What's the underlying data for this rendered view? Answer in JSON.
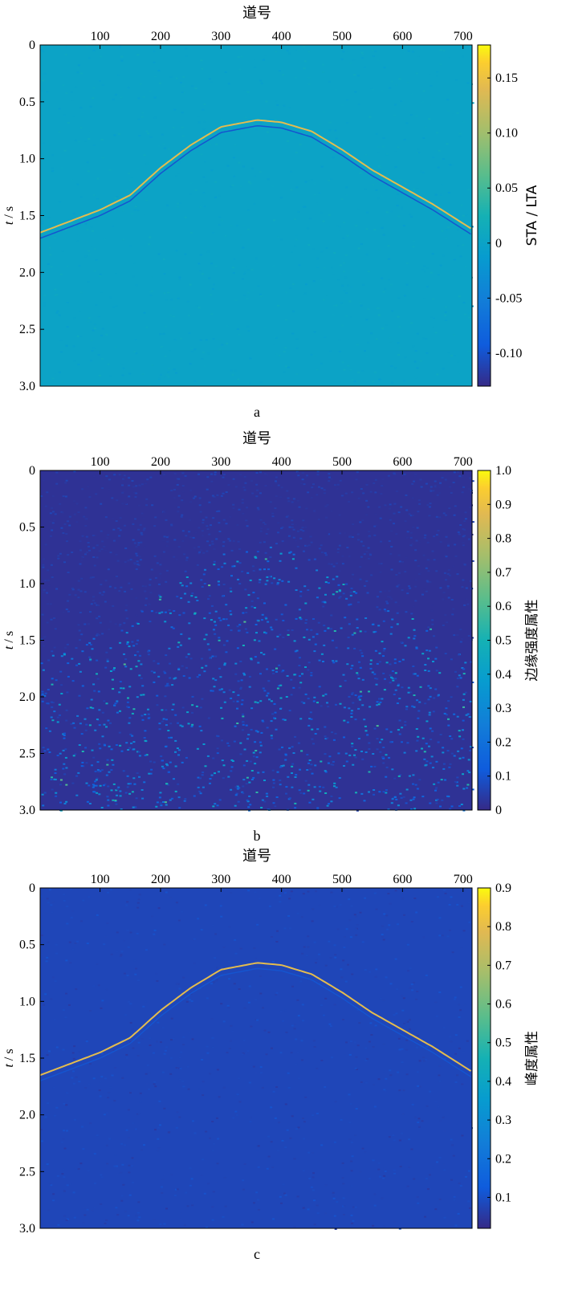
{
  "chart_data": [
    {
      "type": "heatmap",
      "panel_label": "a",
      "xlabel": "道号",
      "ylabel_var": "t",
      "ylabel_unit": "s",
      "xlim": [
        1,
        715
      ],
      "ylim": [
        0,
        3.0
      ],
      "x_ticks": [
        100,
        200,
        300,
        400,
        500,
        600,
        700
      ],
      "y_ticks": [
        0,
        0.5,
        1.0,
        1.5,
        2.0,
        2.5,
        3.0
      ],
      "y_tick_labels": [
        "0",
        "0.5",
        "1.0",
        "1.5",
        "2.0",
        "2.5",
        "3.0"
      ],
      "colorbar": {
        "label": "STA / LTA",
        "range": [
          -0.13,
          0.18
        ],
        "ticks": [
          -0.1,
          -0.05,
          0,
          0.05,
          0.1,
          0.15
        ],
        "tick_labels": [
          "-0.10",
          "-0.05",
          "0",
          "0.05",
          "0.10",
          "0.15"
        ],
        "colormap": "parula"
      },
      "pattern": "event",
      "background_value": 0.0,
      "event_curve": {
        "x": [
          1,
          100,
          150,
          200,
          250,
          300,
          360,
          400,
          450,
          500,
          550,
          600,
          650,
          715
        ],
        "t": [
          1.65,
          1.45,
          1.32,
          1.08,
          0.88,
          0.72,
          0.66,
          0.68,
          0.76,
          0.92,
          1.1,
          1.25,
          1.4,
          1.62
        ]
      }
    },
    {
      "type": "heatmap",
      "panel_label": "b",
      "xlabel": "道号",
      "ylabel_var": "t",
      "ylabel_unit": "s",
      "xlim": [
        1,
        715
      ],
      "ylim": [
        0,
        3.0
      ],
      "x_ticks": [
        100,
        200,
        300,
        400,
        500,
        600,
        700
      ],
      "y_ticks": [
        0,
        0.5,
        1.0,
        1.5,
        2.0,
        2.5,
        3.0
      ],
      "y_tick_labels": [
        "0",
        "0.5",
        "1.0",
        "1.5",
        "2.0",
        "2.5",
        "3.0"
      ],
      "colorbar": {
        "label": "边缘强度属性",
        "range": [
          0,
          1.0
        ],
        "ticks": [
          0,
          0.1,
          0.2,
          0.3,
          0.4,
          0.5,
          0.6,
          0.7,
          0.8,
          0.9,
          1.0
        ],
        "tick_labels": [
          "0",
          "0.1",
          "0.2",
          "0.3",
          "0.4",
          "0.5",
          "0.6",
          "0.7",
          "0.8",
          "0.9",
          "1.0"
        ],
        "colormap": "parula"
      },
      "pattern": "region",
      "background_value": 0.02,
      "event_curve": {
        "x": [
          1,
          100,
          150,
          200,
          250,
          300,
          360,
          400,
          450,
          500,
          550,
          600,
          650,
          715
        ],
        "t": [
          1.65,
          1.45,
          1.32,
          1.08,
          0.88,
          0.72,
          0.66,
          0.68,
          0.76,
          0.92,
          1.1,
          1.25,
          1.4,
          1.62
        ]
      }
    },
    {
      "type": "heatmap",
      "panel_label": "c",
      "xlabel": "道号",
      "ylabel_var": "t",
      "ylabel_unit": "s",
      "xlim": [
        1,
        715
      ],
      "ylim": [
        0,
        3.0
      ],
      "x_ticks": [
        100,
        200,
        300,
        400,
        500,
        600,
        700
      ],
      "y_ticks": [
        0,
        0.5,
        1.0,
        1.5,
        2.0,
        2.5,
        3.0
      ],
      "y_tick_labels": [
        "0",
        "0.5",
        "1.0",
        "1.5",
        "2.0",
        "2.5",
        "3.0"
      ],
      "colorbar": {
        "label": "峰度属性",
        "range": [
          0.02,
          0.9
        ],
        "ticks": [
          0.1,
          0.2,
          0.3,
          0.4,
          0.5,
          0.6,
          0.7,
          0.8,
          0.9
        ],
        "tick_labels": [
          "0.1",
          "0.2",
          "0.3",
          "0.4",
          "0.5",
          "0.6",
          "0.7",
          "0.8",
          "0.9"
        ],
        "colormap": "parula"
      },
      "pattern": "event",
      "background_value": 0.08,
      "event_curve": {
        "x": [
          1,
          100,
          150,
          200,
          250,
          300,
          360,
          400,
          450,
          500,
          550,
          600,
          650,
          715
        ],
        "t": [
          1.65,
          1.45,
          1.32,
          1.08,
          0.88,
          0.72,
          0.66,
          0.68,
          0.76,
          0.92,
          1.1,
          1.25,
          1.4,
          1.62
        ]
      }
    }
  ]
}
